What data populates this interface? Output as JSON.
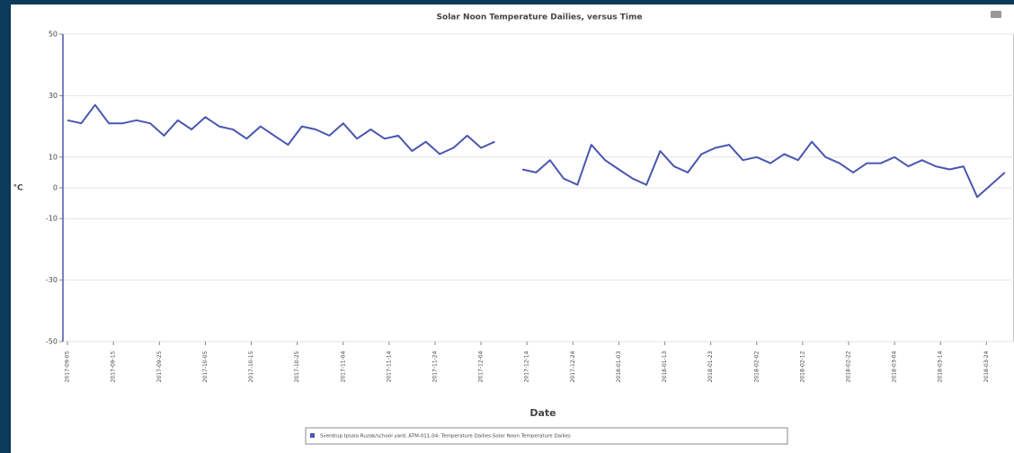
{
  "chart_data": {
    "type": "line",
    "title": "Solar Noon Temperature Dailies, versus Time",
    "xlabel": "Date",
    "ylabel": "°C",
    "x": [
      "2017-09-05",
      "2017-09-08",
      "2017-09-11",
      "2017-09-14",
      "2017-09-17",
      "2017-09-20",
      "2017-09-23",
      "2017-09-26",
      "2017-09-29",
      "2017-10-02",
      "2017-10-05",
      "2017-10-08",
      "2017-10-11",
      "2017-10-14",
      "2017-10-17",
      "2017-10-20",
      "2017-10-23",
      "2017-10-26",
      "2017-10-29",
      "2017-11-01",
      "2017-11-04",
      "2017-11-07",
      "2017-11-10",
      "2017-11-13",
      "2017-11-16",
      "2017-11-19",
      "2017-11-22",
      "2017-11-25",
      "2017-11-28",
      "2017-12-01",
      "2017-12-04",
      "2017-12-07",
      "2017-12-10",
      "2017-12-13",
      "2017-12-16",
      "2017-12-19",
      "2017-12-22",
      "2017-12-25",
      "2017-12-28",
      "2017-12-31",
      "2018-01-03",
      "2018-01-06",
      "2018-01-09",
      "2018-01-12",
      "2018-01-15",
      "2018-01-18",
      "2018-01-21",
      "2018-01-24",
      "2018-01-27",
      "2018-01-30",
      "2018-02-02",
      "2018-02-05",
      "2018-02-08",
      "2018-02-11",
      "2018-02-14",
      "2018-02-17",
      "2018-02-20",
      "2018-02-23",
      "2018-02-26",
      "2018-03-01",
      "2018-03-04",
      "2018-03-07",
      "2018-03-10",
      "2018-03-13",
      "2018-03-16",
      "2018-03-19",
      "2018-03-22",
      "2018-03-25",
      "2018-03-28"
    ],
    "series": [
      {
        "name": "Sverdrup Ipsala Ruzak/school yard; ATM-011-04: Temperature Dailies-Solar Noon Temperature Dailies",
        "color": "#4a56b0",
        "values": [
          22,
          21,
          27,
          21,
          21,
          22,
          21,
          17,
          22,
          19,
          23,
          20,
          19,
          16,
          20,
          17,
          14,
          20,
          19,
          17,
          21,
          16,
          19,
          16,
          17,
          12,
          15,
          11,
          13,
          17,
          13,
          15,
          null,
          6,
          5,
          9,
          3,
          1,
          14,
          9,
          6,
          3,
          1,
          12,
          7,
          5,
          11,
          13,
          14,
          9,
          10,
          8,
          11,
          9,
          15,
          10,
          8,
          5,
          8,
          8,
          10,
          7,
          9,
          7,
          6,
          7,
          -3,
          1,
          5
        ]
      }
    ],
    "xlim": [
      "2017-09-04",
      "2018-03-30"
    ],
    "xticks": [
      "2017-09-05",
      "2017-09-15",
      "2017-09-25",
      "2017-10-05",
      "2017-10-15",
      "2017-10-25",
      "2017-11-04",
      "2017-11-14",
      "2017-11-24",
      "2017-12-04",
      "2017-12-14",
      "2017-12-24",
      "2018-01-03",
      "2018-01-13",
      "2018-01-23",
      "2018-02-02",
      "2018-02-12",
      "2018-02-22",
      "2018-03-04",
      "2018-03-14",
      "2018-03-24"
    ],
    "ylim": [
      -50,
      50
    ],
    "yticks": [
      50,
      30,
      10,
      0,
      -10,
      -30,
      -50
    ],
    "grid": true
  }
}
